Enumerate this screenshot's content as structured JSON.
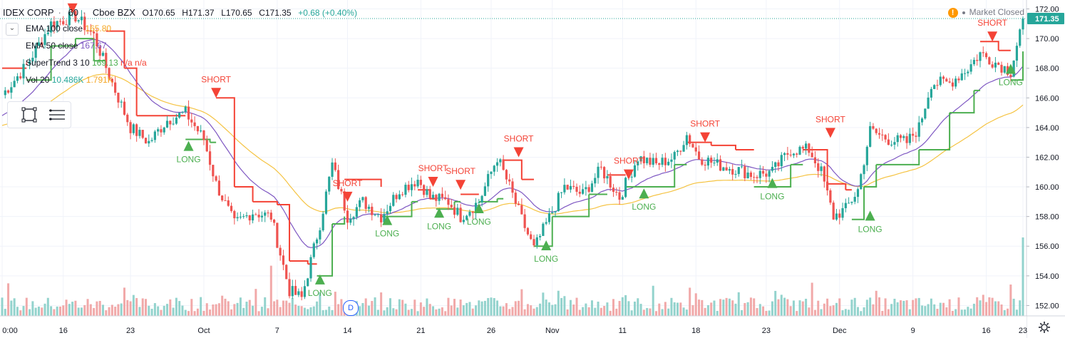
{
  "header": {
    "symbol": "IDEX CORP",
    "interval": "60",
    "exchange": "Cboe BZX",
    "open": "O170.65",
    "high": "H171.37",
    "low": "L170.65",
    "close": "C171.35",
    "change": "+0.68 (+0.40%)",
    "market_status": "Market Closed",
    "status_icon": "!"
  },
  "indicators": {
    "ema100_label": "EMA 100 close",
    "ema100_value": "165.80",
    "ema50_label": "EMA 50 close",
    "ema50_value": "167.67",
    "supertrend_label": "SuperTrend 3 10",
    "supertrend_value1": "169.13",
    "supertrend_value2": "n/a",
    "supertrend_value3": "n/a",
    "vol_label": "Vol 20",
    "vol_value1": "10.486K",
    "vol_value2": "1.791K"
  },
  "colors": {
    "up": "#26a69a",
    "down": "#ef5350",
    "vol_up": "#80cbc4",
    "vol_down": "#ef9a9a",
    "ema50": "#7e57c2",
    "ema100": "#f5c342",
    "st_up": "#4caf50",
    "st_down": "#f44336",
    "long": "#4caf50",
    "short": "#f44336"
  },
  "last_price_label": "171.35",
  "date_badge": "D",
  "chart_data": {
    "type": "candlestick",
    "yaxis": {
      "min": 151.3,
      "max": 172.6,
      "ticks": [
        "152.00",
        "154.00",
        "156.00",
        "158.00",
        "160.00",
        "162.00",
        "164.00",
        "166.00",
        "168.00",
        "170.00",
        "172.00"
      ],
      "position": "right"
    },
    "xaxis": {
      "ticks": [
        "0:00",
        "16",
        "23",
        "Oct",
        "7",
        "14",
        "21",
        "26",
        "Nov",
        "11",
        "18",
        "23",
        "Dec",
        "9",
        "16",
        "23"
      ]
    },
    "last_price": 171.35,
    "grid": true,
    "anchors": [
      {
        "i": 0,
        "c": 166.2
      },
      {
        "i": 8,
        "c": 168.2
      },
      {
        "i": 16,
        "c": 171.0
      },
      {
        "i": 24,
        "c": 171.5
      },
      {
        "i": 30,
        "c": 170.2
      },
      {
        "i": 36,
        "c": 167.0
      },
      {
        "i": 42,
        "c": 164.0
      },
      {
        "i": 48,
        "c": 163.0
      },
      {
        "i": 54,
        "c": 164.5
      },
      {
        "i": 60,
        "c": 165.0
      },
      {
        "i": 66,
        "c": 163.2
      },
      {
        "i": 70,
        "c": 160.2
      },
      {
        "i": 76,
        "c": 157.5
      },
      {
        "i": 82,
        "c": 158.3
      },
      {
        "i": 88,
        "c": 158.0
      },
      {
        "i": 94,
        "c": 153.0
      },
      {
        "i": 98,
        "c": 152.5
      },
      {
        "i": 104,
        "c": 157.5
      },
      {
        "i": 108,
        "c": 161.5
      },
      {
        "i": 113,
        "c": 158.0
      },
      {
        "i": 118,
        "c": 159.0
      },
      {
        "i": 124,
        "c": 158.0
      },
      {
        "i": 130,
        "c": 159.8
      },
      {
        "i": 136,
        "c": 160.5
      },
      {
        "i": 140,
        "c": 159.3
      },
      {
        "i": 146,
        "c": 159.0
      },
      {
        "i": 150,
        "c": 158.0
      },
      {
        "i": 156,
        "c": 159.0
      },
      {
        "i": 162,
        "c": 162.0
      },
      {
        "i": 166,
        "c": 160.0
      },
      {
        "i": 170,
        "c": 157.8
      },
      {
        "i": 174,
        "c": 155.8
      },
      {
        "i": 178,
        "c": 157.5
      },
      {
        "i": 184,
        "c": 160.0
      },
      {
        "i": 190,
        "c": 159.5
      },
      {
        "i": 196,
        "c": 161.2
      },
      {
        "i": 202,
        "c": 159.3
      },
      {
        "i": 208,
        "c": 162.0
      },
      {
        "i": 214,
        "c": 161.5
      },
      {
        "i": 220,
        "c": 162.0
      },
      {
        "i": 224,
        "c": 163.5
      },
      {
        "i": 228,
        "c": 162.0
      },
      {
        "i": 234,
        "c": 161.5
      },
      {
        "i": 240,
        "c": 161.2
      },
      {
        "i": 246,
        "c": 160.8
      },
      {
        "i": 252,
        "c": 161.0
      },
      {
        "i": 258,
        "c": 162.5
      },
      {
        "i": 264,
        "c": 162.5
      },
      {
        "i": 268,
        "c": 161.0
      },
      {
        "i": 272,
        "c": 158.0
      },
      {
        "i": 276,
        "c": 158.5
      },
      {
        "i": 280,
        "c": 159.8
      },
      {
        "i": 284,
        "c": 163.8
      },
      {
        "i": 290,
        "c": 163.2
      },
      {
        "i": 296,
        "c": 163.0
      },
      {
        "i": 300,
        "c": 164.0
      },
      {
        "i": 304,
        "c": 167.0
      },
      {
        "i": 310,
        "c": 167.0
      },
      {
        "i": 316,
        "c": 168.0
      },
      {
        "i": 320,
        "c": 169.0
      },
      {
        "i": 324,
        "c": 168.5
      },
      {
        "i": 330,
        "c": 167.8
      },
      {
        "i": 334,
        "c": 171.35
      }
    ],
    "supertrend": [
      {
        "i": 0,
        "v": 168.0,
        "d": "down"
      },
      {
        "i": 8,
        "v": 167.2,
        "d": "up"
      },
      {
        "i": 16,
        "v": 169.5,
        "d": "up"
      },
      {
        "i": 24,
        "v": 170.0,
        "d": "up"
      },
      {
        "i": 30,
        "v": 168.5,
        "d": "up"
      },
      {
        "i": 34,
        "v": 170.5,
        "d": "down"
      },
      {
        "i": 40,
        "v": 168.0,
        "d": "down"
      },
      {
        "i": 44,
        "v": 164.8,
        "d": "down"
      },
      {
        "i": 52,
        "v": 164.8,
        "d": "down"
      },
      {
        "i": 60,
        "v": 163.2,
        "d": "up"
      },
      {
        "i": 68,
        "v": 163.0,
        "d": "up"
      },
      {
        "i": 70,
        "v": 166.0,
        "d": "down"
      },
      {
        "i": 76,
        "v": 160.0,
        "d": "down"
      },
      {
        "i": 82,
        "v": 159.0,
        "d": "down"
      },
      {
        "i": 90,
        "v": 158.8,
        "d": "down"
      },
      {
        "i": 94,
        "v": 155.0,
        "d": "down"
      },
      {
        "i": 100,
        "v": 154.8,
        "d": "down"
      },
      {
        "i": 103,
        "v": 154.0,
        "d": "up"
      },
      {
        "i": 108,
        "v": 157.5,
        "d": "up"
      },
      {
        "i": 112,
        "v": 158.0,
        "d": "up"
      },
      {
        "i": 112,
        "v": 160.5,
        "d": "down"
      },
      {
        "i": 124,
        "v": 160.0,
        "d": "down"
      },
      {
        "i": 124,
        "v": 158.0,
        "d": "up"
      },
      {
        "i": 134,
        "v": 159.0,
        "d": "up"
      },
      {
        "i": 136,
        "v": 159.8,
        "d": "down"
      },
      {
        "i": 140,
        "v": 159.2,
        "d": "down"
      },
      {
        "i": 142,
        "v": 158.5,
        "d": "up"
      },
      {
        "i": 148,
        "v": 159.0,
        "d": "up"
      },
      {
        "i": 150,
        "v": 159.5,
        "d": "down"
      },
      {
        "i": 156,
        "v": 159.0,
        "d": "up"
      },
      {
        "i": 162,
        "v": 159.2,
        "d": "up"
      },
      {
        "i": 164,
        "v": 161.8,
        "d": "down"
      },
      {
        "i": 170,
        "v": 160.5,
        "d": "down"
      },
      {
        "i": 174,
        "v": 156.0,
        "d": "up"
      },
      {
        "i": 180,
        "v": 158.0,
        "d": "up"
      },
      {
        "i": 192,
        "v": 159.5,
        "d": "up"
      },
      {
        "i": 198,
        "v": 160.8,
        "d": "down"
      },
      {
        "i": 204,
        "v": 160.0,
        "d": "up"
      },
      {
        "i": 220,
        "v": 161.5,
        "d": "up"
      },
      {
        "i": 224,
        "v": 163.0,
        "d": "down"
      },
      {
        "i": 232,
        "v": 162.8,
        "d": "down"
      },
      {
        "i": 240,
        "v": 162.5,
        "d": "down"
      },
      {
        "i": 246,
        "v": 160.0,
        "d": "up"
      },
      {
        "i": 258,
        "v": 161.5,
        "d": "up"
      },
      {
        "i": 262,
        "v": 162.5,
        "d": "down"
      },
      {
        "i": 270,
        "v": 160.2,
        "d": "down"
      },
      {
        "i": 276,
        "v": 159.8,
        "d": "down"
      },
      {
        "i": 278,
        "v": 157.8,
        "d": "up"
      },
      {
        "i": 282,
        "v": 160.0,
        "d": "up"
      },
      {
        "i": 286,
        "v": 161.5,
        "d": "up"
      },
      {
        "i": 300,
        "v": 162.5,
        "d": "up"
      },
      {
        "i": 310,
        "v": 165.0,
        "d": "up"
      },
      {
        "i": 318,
        "v": 166.5,
        "d": "up"
      },
      {
        "i": 320,
        "v": 169.8,
        "d": "down"
      },
      {
        "i": 326,
        "v": 169.2,
        "d": "down"
      },
      {
        "i": 330,
        "v": 167.2,
        "d": "up"
      },
      {
        "i": 334,
        "v": 169.13,
        "d": "up"
      }
    ],
    "signals": [
      {
        "type": "SHORT",
        "i": 23,
        "v": 171.7
      },
      {
        "i": 61,
        "type": "LONG",
        "v": 163.0
      },
      {
        "i": 70,
        "type": "SHORT",
        "v": 166.0
      },
      {
        "i": 104,
        "type": "LONG",
        "v": 154.0
      },
      {
        "i": 113,
        "type": "SHORT",
        "v": 159.0
      },
      {
        "i": 126,
        "type": "LONG",
        "v": 158.0
      },
      {
        "i": 141,
        "type": "SHORT",
        "v": 160.0
      },
      {
        "i": 143,
        "type": "LONG",
        "v": 158.5
      },
      {
        "i": 150,
        "type": "SHORT",
        "v": 159.8
      },
      {
        "i": 156,
        "type": "LONG",
        "v": 158.8
      },
      {
        "i": 169,
        "type": "SHORT",
        "v": 162.0
      },
      {
        "i": 178,
        "type": "LONG",
        "v": 156.3
      },
      {
        "i": 205,
        "type": "SHORT",
        "v": 160.5
      },
      {
        "i": 210,
        "type": "LONG",
        "v": 159.8
      },
      {
        "i": 230,
        "type": "SHORT",
        "v": 163.0
      },
      {
        "i": 252,
        "type": "LONG",
        "v": 160.5
      },
      {
        "i": 271,
        "type": "SHORT",
        "v": 163.3
      },
      {
        "i": 284,
        "type": "LONG",
        "v": 158.3
      },
      {
        "i": 324,
        "type": "SHORT",
        "v": 169.8
      },
      {
        "i": 330,
        "type": "LONG",
        "v": 168.2
      }
    ],
    "volume_spikes": [
      {
        "i": 40,
        "v": 1.8
      },
      {
        "i": 88,
        "v": 3.2
      },
      {
        "i": 104,
        "v": 1.5
      },
      {
        "i": 170,
        "v": 1.7
      },
      {
        "i": 286,
        "v": 1.6
      },
      {
        "i": 330,
        "v": 2.0
      },
      {
        "i": 334,
        "v": 10.486
      }
    ]
  }
}
